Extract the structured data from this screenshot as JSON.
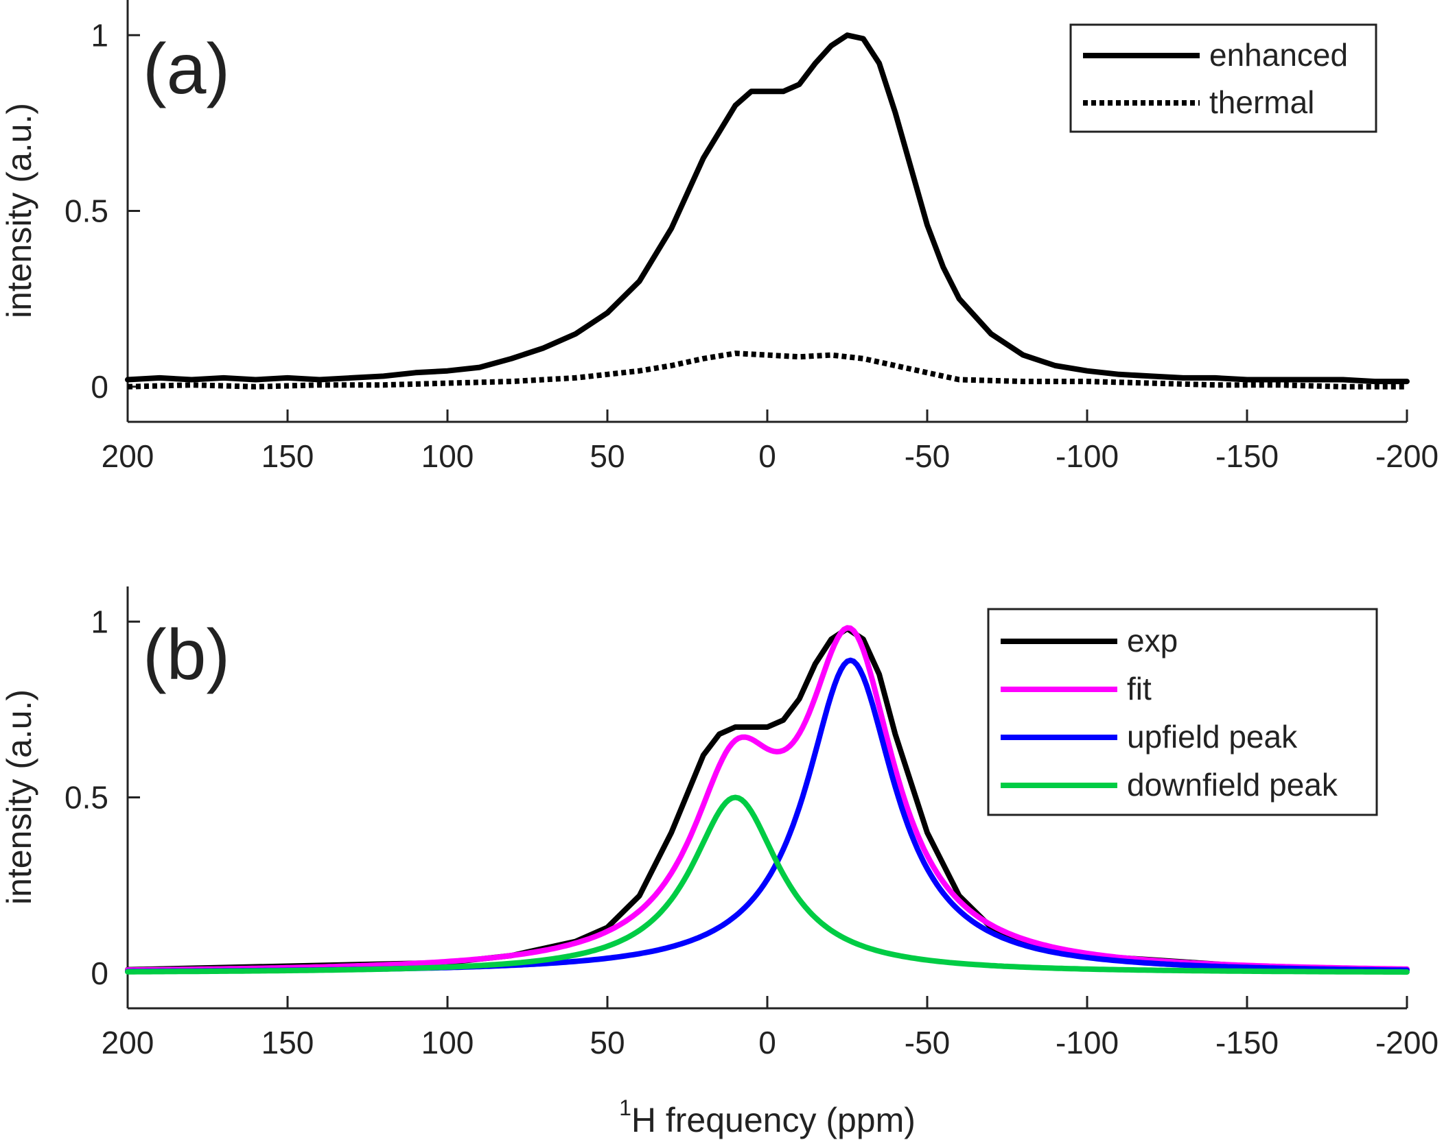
{
  "chart_data": [
    {
      "type": "line",
      "panel_label": "(a)",
      "xlabel": "",
      "ylabel": "intensity (a.u.)",
      "xlim": [
        200,
        -200
      ],
      "ylim": [
        -0.1,
        1.1
      ],
      "x_reversed": true,
      "x_ticks": [
        200,
        150,
        100,
        50,
        0,
        -50,
        -100,
        -150,
        -200
      ],
      "x_tick_labels": [
        "200",
        "150",
        "100",
        "50",
        "0",
        "-50",
        "-100",
        "-150",
        "-200"
      ],
      "y_ticks": [
        0,
        0.5,
        1
      ],
      "y_tick_labels": [
        "0",
        "0.5",
        "1"
      ],
      "legend_position": "top-right",
      "series": [
        {
          "name": "enhanced",
          "style": "solid",
          "color": "#000000",
          "x": [
            200,
            190,
            180,
            170,
            160,
            150,
            140,
            130,
            120,
            110,
            100,
            90,
            80,
            70,
            60,
            50,
            40,
            30,
            20,
            10,
            5,
            0,
            -5,
            -10,
            -15,
            -20,
            -25,
            -30,
            -35,
            -40,
            -45,
            -50,
            -55,
            -60,
            -70,
            -80,
            -90,
            -100,
            -110,
            -120,
            -130,
            -140,
            -150,
            -160,
            -170,
            -180,
            -190,
            -200
          ],
          "y": [
            0.02,
            0.025,
            0.02,
            0.025,
            0.02,
            0.025,
            0.02,
            0.025,
            0.03,
            0.04,
            0.045,
            0.055,
            0.08,
            0.11,
            0.15,
            0.21,
            0.3,
            0.45,
            0.65,
            0.8,
            0.84,
            0.84,
            0.84,
            0.86,
            0.92,
            0.97,
            1.0,
            0.99,
            0.92,
            0.78,
            0.62,
            0.46,
            0.34,
            0.25,
            0.15,
            0.09,
            0.06,
            0.045,
            0.035,
            0.03,
            0.025,
            0.025,
            0.02,
            0.02,
            0.02,
            0.02,
            0.015,
            0.015
          ]
        },
        {
          "name": "thermal",
          "style": "dotted",
          "color": "#000000",
          "x": [
            200,
            180,
            160,
            140,
            120,
            100,
            80,
            60,
            50,
            40,
            30,
            20,
            10,
            0,
            -10,
            -20,
            -30,
            -40,
            -50,
            -60,
            -80,
            -100,
            -120,
            -140,
            -160,
            -180,
            -200
          ],
          "y": [
            0.0,
            0.005,
            0.0,
            0.005,
            0.005,
            0.01,
            0.015,
            0.025,
            0.035,
            0.045,
            0.06,
            0.08,
            0.095,
            0.09,
            0.085,
            0.09,
            0.08,
            0.06,
            0.04,
            0.02,
            0.015,
            0.015,
            0.01,
            0.005,
            0.005,
            0.0,
            0.0
          ]
        }
      ]
    },
    {
      "type": "line",
      "panel_label": "(b)",
      "xlabel_prefix": "1",
      "xlabel": "H frequency (ppm)",
      "ylabel": "intensity (a.u.)",
      "xlim": [
        200,
        -200
      ],
      "ylim": [
        -0.1,
        1.1
      ],
      "x_reversed": true,
      "x_ticks": [
        200,
        150,
        100,
        50,
        0,
        -50,
        -100,
        -150,
        -200
      ],
      "x_tick_labels": [
        "200",
        "150",
        "100",
        "50",
        "0",
        "-50",
        "-100",
        "-150",
        "-200"
      ],
      "y_ticks": [
        0,
        0.5,
        1
      ],
      "y_tick_labels": [
        "0",
        "0.5",
        "1"
      ],
      "legend_position": "top-right",
      "model": {
        "upfield_peak": {
          "center": -26,
          "amplitude": 0.89,
          "hwhm": 17
        },
        "downfield_peak": {
          "center": 10,
          "amplitude": 0.5,
          "hwhm": 17
        }
      },
      "series": [
        {
          "name": "exp",
          "color": "#000000",
          "x": [
            200,
            150,
            100,
            80,
            60,
            50,
            40,
            30,
            20,
            15,
            10,
            5,
            0,
            -5,
            -10,
            -15,
            -20,
            -25,
            -30,
            -35,
            -40,
            -50,
            -60,
            -70,
            -80,
            -100,
            -150,
            -200
          ],
          "y": [
            0.01,
            0.02,
            0.03,
            0.05,
            0.09,
            0.13,
            0.22,
            0.4,
            0.62,
            0.68,
            0.7,
            0.7,
            0.7,
            0.72,
            0.78,
            0.88,
            0.95,
            0.98,
            0.95,
            0.85,
            0.68,
            0.4,
            0.22,
            0.13,
            0.09,
            0.05,
            0.02,
            0.01
          ]
        },
        {
          "name": "fit",
          "color": "#ff00ff",
          "formula": "sum"
        },
        {
          "name": "upfield peak",
          "color": "#0000ff",
          "formula": "upfield_peak"
        },
        {
          "name": "downfield peak",
          "color": "#00cc44",
          "formula": "downfield_peak"
        }
      ]
    }
  ]
}
